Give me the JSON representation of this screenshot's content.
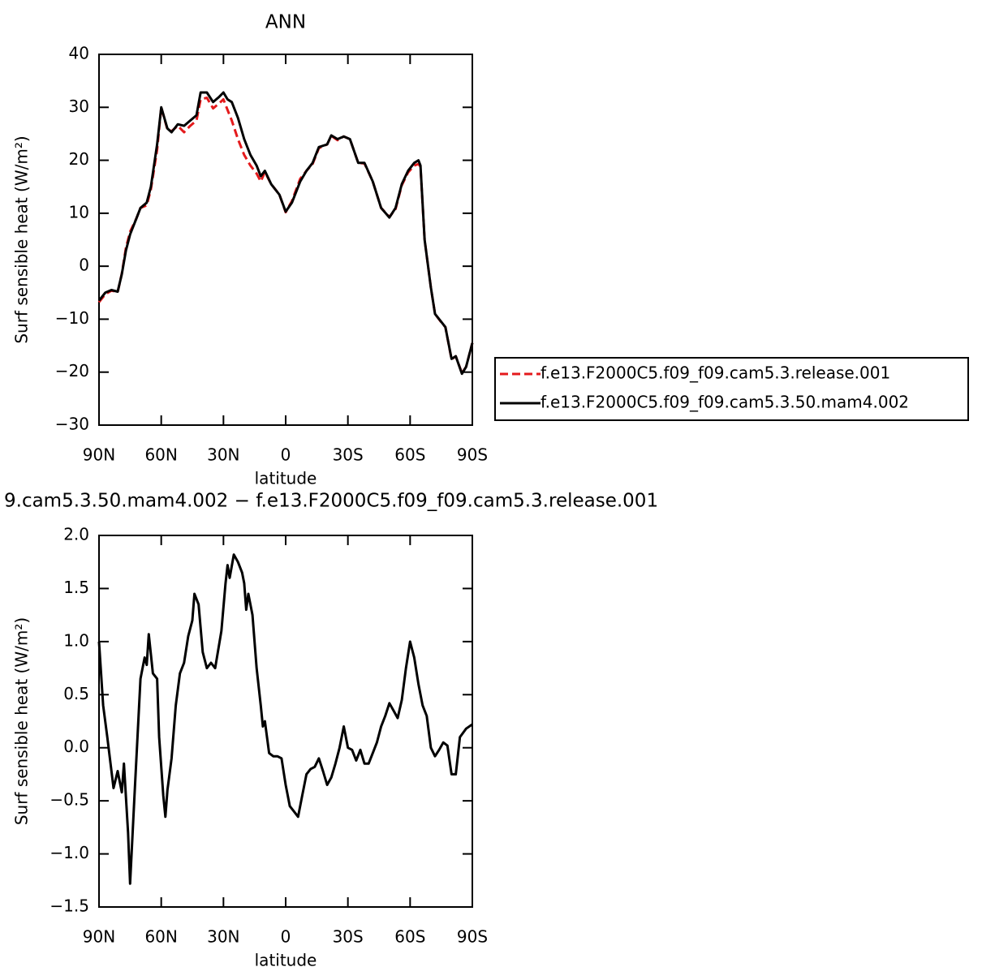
{
  "chart_data": [
    {
      "type": "line",
      "title": "ANN",
      "xlabel": "latitude",
      "ylabel": "Surf sensible heat (W/m²)",
      "xlim": [
        90,
        -90
      ],
      "xticks": [
        {
          "value": 90,
          "label": "90N"
        },
        {
          "value": 60,
          "label": "60N"
        },
        {
          "value": 30,
          "label": "30N"
        },
        0,
        {
          "value": -30,
          "label": "30S"
        },
        {
          "value": -60,
          "label": "60S"
        },
        {
          "value": -90,
          "label": "90S"
        }
      ],
      "ylim": [
        -30,
        40
      ],
      "yticks": [
        {
          "value": -30,
          "label": "−30"
        },
        {
          "value": -20,
          "label": "−20"
        },
        {
          "value": -10,
          "label": "−10"
        },
        0,
        10,
        20,
        30,
        40
      ],
      "legend": "right",
      "x": [
        90,
        87,
        84,
        81,
        79,
        77,
        75,
        72,
        70,
        67,
        65,
        62,
        60,
        57,
        55,
        52,
        49,
        46,
        43,
        41,
        38,
        35,
        32,
        30,
        28,
        26,
        23,
        20,
        17,
        14,
        12,
        10,
        7,
        3,
        0,
        -3,
        -7,
        -10,
        -13,
        -16,
        -20,
        -22,
        -25,
        -28,
        -31,
        -35,
        -38,
        -42,
        -46,
        -50,
        -53,
        -56,
        -59,
        -62,
        -64,
        -65,
        -67,
        -70,
        -72,
        -75,
        -77,
        -80,
        -82,
        -85,
        -87,
        -90
      ],
      "series": [
        {
          "name": "f.e13.F2000C5.f09_f09.cam5.3.release.001",
          "color": "#e41a1c",
          "style": "dashed",
          "values": [
            -6.8,
            -5.3,
            -4.6,
            -4.9,
            -1.4,
            3.5,
            6.5,
            9,
            11,
            11.5,
            14.5,
            22,
            30,
            25.8,
            25.5,
            26.5,
            25.3,
            26.5,
            27.5,
            31.5,
            31.8,
            29.8,
            30.8,
            31.5,
            29.5,
            27.5,
            24,
            21,
            19,
            17.5,
            16,
            17.8,
            15.5,
            13.5,
            10.2,
            12.3,
            16.5,
            18,
            19.3,
            22.3,
            23,
            24.6,
            23.8,
            24.5,
            24,
            19.5,
            19.4,
            16,
            11,
            9.3,
            10.8,
            15.3,
            17.7,
            19,
            19.3,
            18.8,
            5,
            -4,
            -9,
            -10.6,
            -11.5,
            -17.6,
            -17,
            -20.2,
            -19,
            -14.5
          ]
        },
        {
          "name": "f.e13.F2000C5.f09_f09.cam5.3.50.mam4.002",
          "color": "#000000",
          "style": "solid",
          "values": [
            -6.5,
            -5,
            -4.5,
            -4.8,
            -1.5,
            3,
            6,
            9,
            11,
            12,
            15,
            23,
            30,
            26,
            25.3,
            26.8,
            26.5,
            27.5,
            28.5,
            32.8,
            32.8,
            31,
            32,
            32.8,
            31.5,
            31,
            28,
            24,
            21,
            19,
            17,
            18,
            15.5,
            13.5,
            10.3,
            12,
            16,
            18,
            19.5,
            22.5,
            23,
            24.7,
            24,
            24.5,
            24,
            19.5,
            19.5,
            16,
            11,
            9.2,
            11,
            15.5,
            18,
            19.5,
            20,
            19,
            5,
            -4,
            -9,
            -10.5,
            -11.5,
            -17.5,
            -17,
            -20.3,
            -19,
            -14.5
          ]
        }
      ]
    },
    {
      "type": "line",
      "title": "9.cam5.3.50.mam4.002 − f.e13.F2000C5.f09_f09.cam5.3.release.001",
      "xlabel": "latitude",
      "ylabel": "Surf sensible heat (W/m²)",
      "xlim": [
        90,
        -90
      ],
      "xticks": [
        {
          "value": 90,
          "label": "90N"
        },
        {
          "value": 60,
          "label": "60N"
        },
        {
          "value": 30,
          "label": "30N"
        },
        0,
        {
          "value": -30,
          "label": "30S"
        },
        {
          "value": -60,
          "label": "60S"
        },
        {
          "value": -90,
          "label": "90S"
        }
      ],
      "ylim": [
        -1.5,
        2.0
      ],
      "yticks": [
        {
          "value": -1.5,
          "label": "−1.5"
        },
        {
          "value": -1.0,
          "label": "−1.0"
        },
        {
          "value": -0.5,
          "label": "−0.5"
        },
        {
          "value": 0,
          "label": "0.0"
        },
        0.5,
        {
          "value": 1,
          "label": "1.0"
        },
        1.5,
        {
          "value": 2,
          "label": "2.0"
        }
      ],
      "x": [
        90,
        88,
        86,
        83,
        81,
        79,
        78,
        76,
        75,
        73,
        70,
        68,
        67,
        66,
        64,
        62,
        61,
        59,
        58,
        57,
        55,
        53,
        51,
        49,
        47,
        45,
        44,
        42,
        40,
        38,
        36,
        34,
        31,
        29,
        28,
        27,
        25,
        23,
        21,
        20,
        19,
        18,
        16,
        14,
        12,
        11,
        10,
        8,
        6,
        4,
        2,
        0,
        -2,
        -4,
        -6,
        -8,
        -10,
        -12,
        -14,
        -16,
        -18,
        -20,
        -22,
        -24,
        -26,
        -28,
        -30,
        -32,
        -34,
        -36,
        -38,
        -40,
        -42,
        -44,
        -46,
        -48,
        -50,
        -52,
        -54,
        -56,
        -58,
        -60,
        -62,
        -64,
        -66,
        -68,
        -70,
        -72,
        -74,
        -76,
        -78,
        -80,
        -82,
        -84,
        -87,
        -90
      ],
      "series": [
        {
          "name": null,
          "color": "#000000",
          "style": "solid",
          "values": [
            1.0,
            0.4,
            0.1,
            -0.38,
            -0.22,
            -0.42,
            -0.15,
            -0.8,
            -1.28,
            -0.5,
            0.65,
            0.85,
            0.78,
            1.07,
            0.7,
            0.65,
            0.1,
            -0.45,
            -0.65,
            -0.4,
            -0.1,
            0.4,
            0.7,
            0.8,
            1.05,
            1.2,
            1.45,
            1.35,
            0.9,
            0.75,
            0.8,
            0.75,
            1.1,
            1.55,
            1.72,
            1.6,
            1.82,
            1.75,
            1.65,
            1.55,
            1.3,
            1.45,
            1.25,
            0.75,
            0.4,
            0.2,
            0.25,
            -0.05,
            -0.08,
            -0.08,
            -0.1,
            -0.35,
            -0.55,
            -0.6,
            -0.65,
            -0.45,
            -0.25,
            -0.2,
            -0.18,
            -0.1,
            -0.22,
            -0.35,
            -0.28,
            -0.15,
            0.0,
            0.2,
            0.0,
            -0.02,
            -0.12,
            -0.02,
            -0.15,
            -0.15,
            -0.05,
            0.05,
            0.2,
            0.3,
            0.42,
            0.35,
            0.28,
            0.45,
            0.75,
            1.0,
            0.85,
            0.6,
            0.4,
            0.3,
            0.0,
            -0.08,
            -0.02,
            0.05,
            0.02,
            -0.25,
            -0.25,
            0.1,
            0.18,
            0.22
          ]
        }
      ]
    }
  ]
}
